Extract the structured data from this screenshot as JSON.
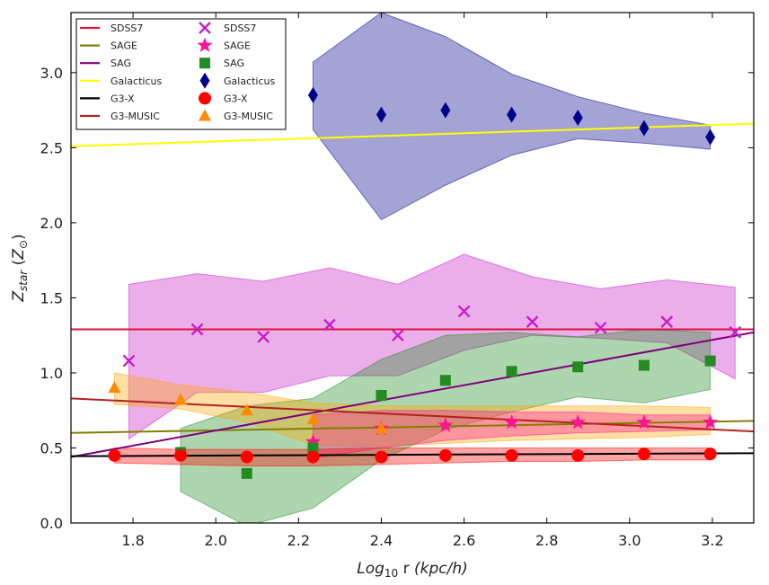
{
  "chart_data": {
    "type": "scatter",
    "xlabel": "Log₁₀ r (kpc/h)",
    "ylabel": "Z_star (Z⊙)",
    "xlim": [
      1.65,
      3.3
    ],
    "ylim": [
      0.0,
      3.4
    ],
    "xticks": [
      "1.8",
      "2.0",
      "2.2",
      "2.4",
      "2.6",
      "2.8",
      "3.0",
      "3.2"
    ],
    "yticks": [
      "0.0",
      "0.5",
      "1.0",
      "1.5",
      "2.0",
      "2.5",
      "3.0"
    ],
    "grid": false,
    "legend_position": "top-left",
    "lines": [
      {
        "name": "SDSS7",
        "color": "#dc143c",
        "x": [
          1.65,
          3.3
        ],
        "y": [
          1.29,
          1.29
        ]
      },
      {
        "name": "SAGE",
        "color": "#808000",
        "x": [
          1.65,
          3.3
        ],
        "y": [
          0.6,
          0.68
        ]
      },
      {
        "name": "SAG",
        "color": "#800080",
        "x": [
          1.65,
          3.3
        ],
        "y": [
          0.44,
          1.27
        ]
      },
      {
        "name": "Galacticus",
        "color": "#ffff00",
        "x": [
          1.65,
          3.3
        ],
        "y": [
          2.51,
          2.66
        ]
      },
      {
        "name": "G3-X",
        "color": "#000000",
        "x": [
          1.65,
          3.3
        ],
        "y": [
          0.445,
          0.465
        ]
      },
      {
        "name": "G3-MUSIC",
        "color": "#b22222",
        "x": [
          1.65,
          3.3
        ],
        "y": [
          0.83,
          0.61
        ]
      }
    ],
    "bands": [
      {
        "series": "Galacticus",
        "color": "#00008b",
        "x": [
          2.235,
          2.4,
          2.555,
          2.715,
          2.875,
          3.035,
          3.195
        ],
        "upper": [
          3.07,
          3.4,
          3.24,
          2.99,
          2.84,
          2.73,
          2.65
        ],
        "lower": [
          2.62,
          2.02,
          2.25,
          2.45,
          2.56,
          2.53,
          2.49
        ]
      },
      {
        "series": "SDSS7",
        "color": "#c71ec7",
        "x": [
          1.79,
          1.955,
          2.115,
          2.275,
          2.44,
          2.6,
          2.765,
          2.93,
          3.09,
          3.255
        ],
        "upper": [
          1.59,
          1.66,
          1.61,
          1.7,
          1.59,
          1.79,
          1.64,
          1.56,
          1.62,
          1.57
        ],
        "lower": [
          0.56,
          0.87,
          0.87,
          0.98,
          0.98,
          1.15,
          1.25,
          1.23,
          1.2,
          0.96
        ]
      },
      {
        "series": "SAG",
        "color": "#1e8c1e",
        "x": [
          1.915,
          2.075,
          2.235,
          2.4,
          2.555,
          2.715,
          2.875,
          3.035,
          3.195
        ],
        "upper": [
          0.63,
          0.78,
          0.83,
          1.09,
          1.25,
          1.27,
          1.24,
          1.29,
          1.27
        ],
        "lower": [
          0.21,
          -0.02,
          0.1,
          0.42,
          0.62,
          0.74,
          0.84,
          0.8,
          0.89
        ]
      },
      {
        "series": "G3-MUSIC",
        "color": "#ffa500",
        "x": [
          1.755,
          1.915,
          2.075,
          2.235,
          2.4,
          2.555,
          2.715,
          2.875,
          3.035,
          3.195
        ],
        "upper": [
          1.0,
          0.92,
          0.87,
          0.8,
          0.78,
          0.78,
          0.78,
          0.78,
          0.78,
          0.77
        ],
        "lower": [
          0.79,
          0.76,
          0.67,
          0.52,
          0.51,
          0.53,
          0.55,
          0.56,
          0.57,
          0.59
        ]
      },
      {
        "series": "SAGE",
        "color": "#ff1493",
        "x": [
          2.235,
          2.4,
          2.555,
          2.715,
          2.875,
          3.035,
          3.195
        ],
        "upper": [
          0.72,
          0.75,
          0.75,
          0.74,
          0.74,
          0.72,
          0.72
        ],
        "lower": [
          0.43,
          0.5,
          0.55,
          0.58,
          0.6,
          0.61,
          0.62
        ]
      },
      {
        "series": "G3-X",
        "color": "#ff0000",
        "x": [
          1.755,
          1.915,
          2.075,
          2.235,
          2.4,
          2.555,
          2.715,
          2.875,
          3.035,
          3.195
        ],
        "upper": [
          0.5,
          0.49,
          0.49,
          0.49,
          0.5,
          0.5,
          0.5,
          0.5,
          0.5,
          0.5
        ],
        "lower": [
          0.4,
          0.39,
          0.38,
          0.38,
          0.39,
          0.4,
          0.41,
          0.41,
          0.42,
          0.42
        ]
      }
    ],
    "points": [
      {
        "name": "SDSS7",
        "marker": "x",
        "color": "#c71ec7",
        "x": [
          1.79,
          1.955,
          2.115,
          2.275,
          2.44,
          2.6,
          2.765,
          2.93,
          3.09,
          3.255
        ],
        "y": [
          1.08,
          1.29,
          1.24,
          1.32,
          1.25,
          1.41,
          1.34,
          1.3,
          1.34,
          1.27
        ]
      },
      {
        "name": "SAGE",
        "marker": "star",
        "color": "#ff1493",
        "x": [
          2.235,
          2.4,
          2.555,
          2.715,
          2.875,
          3.035,
          3.195
        ],
        "y": [
          0.54,
          0.63,
          0.65,
          0.67,
          0.67,
          0.67,
          0.67
        ]
      },
      {
        "name": "SAG",
        "marker": "square",
        "color": "#228b22",
        "x": [
          1.915,
          2.075,
          2.235,
          2.4,
          2.555,
          2.715,
          2.875,
          3.035,
          3.195
        ],
        "y": [
          0.47,
          0.33,
          0.5,
          0.85,
          0.95,
          1.01,
          1.04,
          1.05,
          1.08
        ]
      },
      {
        "name": "Galacticus",
        "marker": "diamond",
        "color": "#00008b",
        "x": [
          2.235,
          2.4,
          2.555,
          2.715,
          2.875,
          3.035,
          3.195
        ],
        "y": [
          2.85,
          2.72,
          2.75,
          2.72,
          2.7,
          2.63,
          2.57
        ]
      },
      {
        "name": "G3-X",
        "marker": "circle",
        "color": "#ff0000",
        "x": [
          1.755,
          1.915,
          2.075,
          2.235,
          2.4,
          2.555,
          2.715,
          2.875,
          3.035,
          3.195
        ],
        "y": [
          0.45,
          0.45,
          0.44,
          0.44,
          0.44,
          0.45,
          0.45,
          0.45,
          0.46,
          0.46
        ]
      },
      {
        "name": "G3-MUSIC",
        "marker": "triangle",
        "color": "#ff8c00",
        "x": [
          1.755,
          1.915,
          2.075,
          2.235,
          2.4
        ],
        "y": [
          0.9,
          0.82,
          0.75,
          0.69,
          0.63
        ]
      }
    ],
    "legend": {
      "lines": [
        "SDSS7",
        "SAGE",
        "SAG",
        "Galacticus",
        "G3-X",
        "G3-MUSIC"
      ],
      "markers": [
        "SDSS7",
        "SAGE",
        "SAG",
        "Galacticus",
        "G3-X",
        "G3-MUSIC"
      ]
    }
  }
}
